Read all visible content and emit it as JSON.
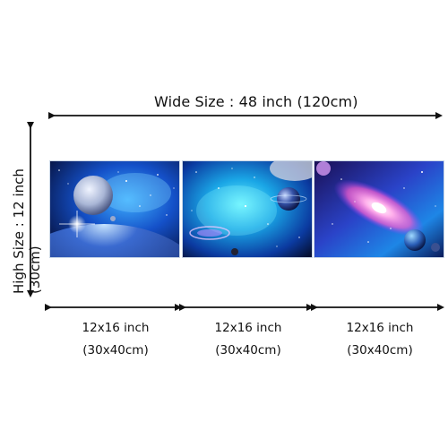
{
  "wide_size": {
    "label": "Wide Size : 48 inch   (120cm)"
  },
  "high_size": {
    "label": "High  Size : 12 inch  (30cm)"
  },
  "panels": [
    {
      "size_inch": "12x16 inch",
      "size_cm": "(30x40cm)"
    },
    {
      "size_inch": "12x16 inch",
      "size_cm": "(30x40cm)"
    },
    {
      "size_inch": "12x16 inch",
      "size_cm": "(30x40cm)"
    }
  ],
  "colors": {
    "arrow": "#111111",
    "space_dark": "#050a2e",
    "nebula_blue": "#1e8cff",
    "nebula_cyan": "#2fe3ff",
    "nebula_pink": "#ff5fd2"
  }
}
